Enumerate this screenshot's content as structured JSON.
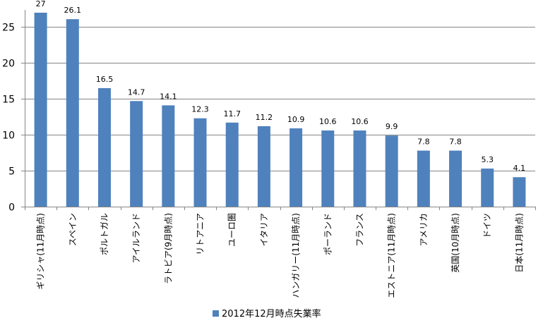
{
  "chart_data": {
    "type": "bar",
    "categories": [
      "ギリシャ(11月時点)",
      "スペイン",
      "ポルトガル",
      "アイルランド",
      "ラトビア(9月時点)",
      "リトアニア",
      "ユーロ圏",
      "イタリア",
      "ハンガリー(11月時点)",
      "ポーランド",
      "フランス",
      "エストニア(11月時点)",
      "アメリカ",
      "英国(10月時点)",
      "ドイツ",
      "日本(11月時点)"
    ],
    "series": [
      {
        "name": "2012年12月時点失業率",
        "values": [
          27,
          26.1,
          16.5,
          14.7,
          14.1,
          12.3,
          11.7,
          11.2,
          10.9,
          10.6,
          10.6,
          9.9,
          7.8,
          7.8,
          5.3,
          4.1
        ]
      }
    ],
    "data_labels": [
      "27",
      "26.1",
      "16.5",
      "14.7",
      "14.1",
      "12.3",
      "11.7",
      "11.2",
      "10.9",
      "10.6",
      "10.6",
      "9.9",
      "7.8",
      "7.8",
      "5.3",
      "4.1"
    ],
    "y_ticks": [
      "0",
      "5",
      "10",
      "15",
      "20",
      "25"
    ],
    "ylim": [
      0,
      27
    ],
    "grid": true,
    "legend_position": "bottom",
    "colors": {
      "bar": "#4f81bd",
      "grid": "#868686",
      "axis": "#868686"
    }
  }
}
